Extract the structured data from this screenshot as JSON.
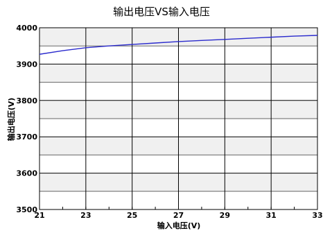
{
  "chart_data": {
    "type": "line",
    "title": "输出电压VS输入电压",
    "xlabel": "输入电压(V)",
    "ylabel": "输出电压(V)",
    "xlim": [
      21,
      33
    ],
    "ylim": [
      3500,
      4000
    ],
    "xticks": [
      "21",
      "23",
      "25",
      "27",
      "29",
      "31",
      "33"
    ],
    "yticks": [
      "3500",
      "3600",
      "3700",
      "3800",
      "3900",
      "4000"
    ],
    "grid": true,
    "legend": "none",
    "series": [
      {
        "color": "#2a2acd",
        "x": [
          21,
          22,
          23,
          24,
          25,
          26,
          27,
          28,
          29,
          30,
          31,
          32,
          33
        ],
        "y": [
          3927,
          3937,
          3945,
          3950,
          3954,
          3958,
          3962,
          3965,
          3968,
          3971,
          3974,
          3977,
          3979
        ]
      }
    ]
  }
}
